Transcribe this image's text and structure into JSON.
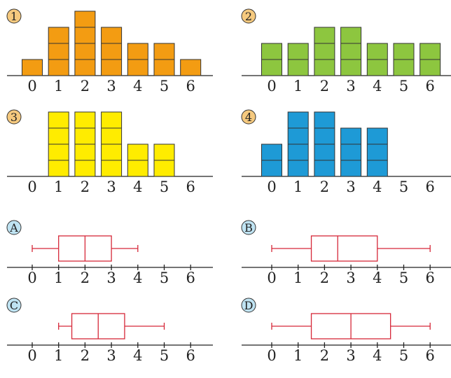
{
  "chart_data": [
    {
      "type": "bar",
      "panel_label": "1",
      "label_bg": "#f5c97e",
      "color": "#f39c12",
      "categories": [
        "0",
        "1",
        "2",
        "3",
        "4",
        "5",
        "6"
      ],
      "values": [
        1,
        3,
        4,
        3,
        2,
        2,
        1
      ]
    },
    {
      "type": "bar",
      "panel_label": "2",
      "label_bg": "#f5c97e",
      "color": "#8dc63f",
      "categories": [
        "0",
        "1",
        "2",
        "3",
        "4",
        "5",
        "6"
      ],
      "values": [
        2,
        2,
        3,
        3,
        2,
        2,
        2
      ]
    },
    {
      "type": "bar",
      "panel_label": "3",
      "label_bg": "#f5c97e",
      "color": "#ffec00",
      "categories": [
        "0",
        "1",
        "2",
        "3",
        "4",
        "5",
        "6"
      ],
      "values": [
        0,
        4,
        4,
        4,
        2,
        2,
        0
      ]
    },
    {
      "type": "bar",
      "panel_label": "4",
      "label_bg": "#f5c97e",
      "color": "#1e9ad6",
      "categories": [
        "0",
        "1",
        "2",
        "3",
        "4",
        "5",
        "6"
      ],
      "values": [
        2,
        4,
        4,
        3,
        3,
        0,
        0
      ]
    },
    {
      "type": "boxplot",
      "panel_label": "A",
      "label_bg": "#bfe3f2",
      "color": "#d62839",
      "ticks": [
        "0",
        "1",
        "2",
        "3",
        "4",
        "5",
        "6"
      ],
      "min": 0,
      "q1": 1,
      "median": 2,
      "q3": 3,
      "max": 4
    },
    {
      "type": "boxplot",
      "panel_label": "B",
      "label_bg": "#bfe3f2",
      "color": "#d62839",
      "ticks": [
        "0",
        "1",
        "2",
        "3",
        "4",
        "5",
        "6"
      ],
      "min": 0,
      "q1": 1.5,
      "median": 2.5,
      "q3": 4,
      "max": 6
    },
    {
      "type": "boxplot",
      "panel_label": "C",
      "label_bg": "#bfe3f2",
      "color": "#d62839",
      "ticks": [
        "0",
        "1",
        "2",
        "3",
        "4",
        "5",
        "6"
      ],
      "min": 1,
      "q1": 1.5,
      "median": 2.5,
      "q3": 3.5,
      "max": 5
    },
    {
      "type": "boxplot",
      "panel_label": "D",
      "label_bg": "#bfe3f2",
      "color": "#d62839",
      "ticks": [
        "0",
        "1",
        "2",
        "3",
        "4",
        "5",
        "6"
      ],
      "min": 0,
      "q1": 1.5,
      "median": 3,
      "q3": 4.5,
      "max": 6
    }
  ]
}
